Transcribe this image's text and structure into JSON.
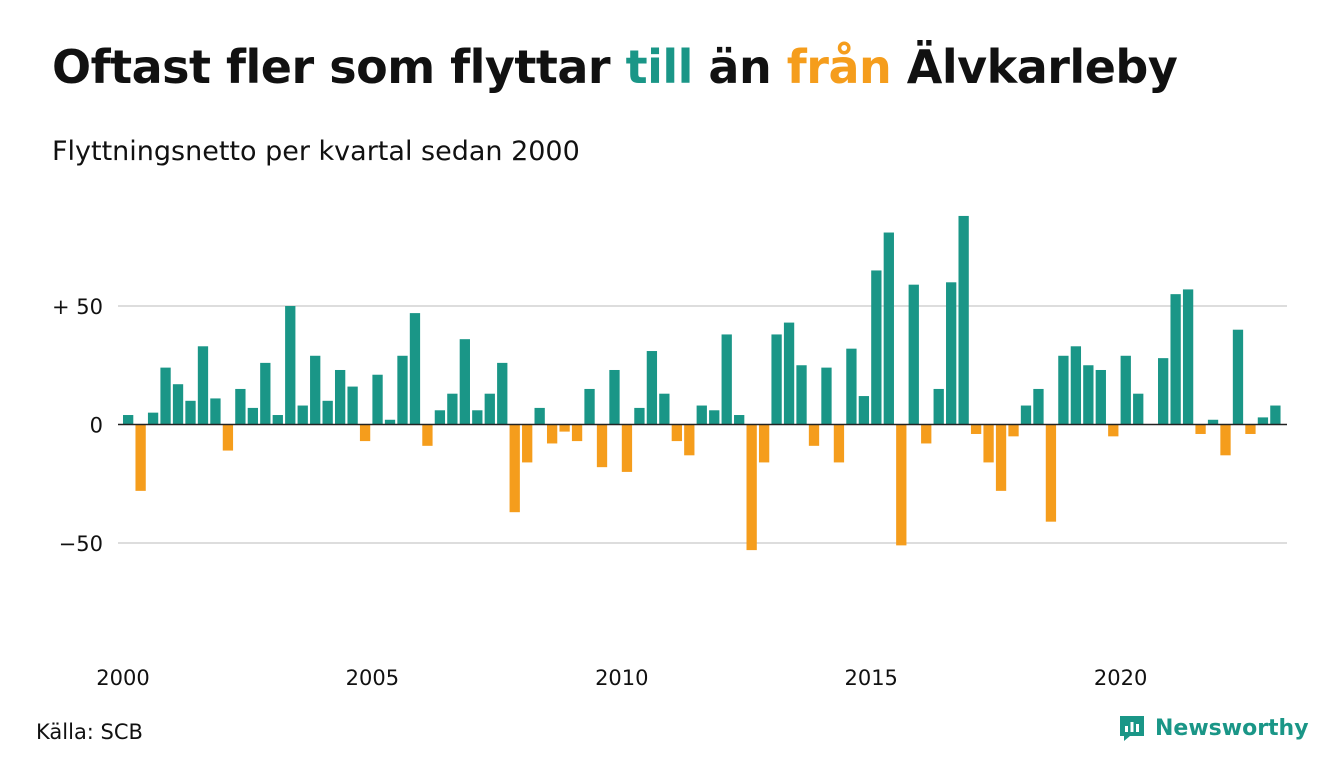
{
  "title": {
    "part1": "Oftast fler som flyttar ",
    "till": "till",
    "part2": " än ",
    "fran": "från",
    "part3": " Älvkarleby"
  },
  "subtitle": "Flyttningsnetto per kvartal sedan 2000",
  "source": "Källa: SCB",
  "brand": "Newsworthy",
  "colors": {
    "positive": "#1a9687",
    "negative": "#f59d1c",
    "grid": "#dddddd",
    "zero": "#222222"
  },
  "chart_data": {
    "type": "bar",
    "ylim": [
      -88,
      90
    ],
    "yticks": [
      {
        "value": 50,
        "label": "+ 50"
      },
      {
        "value": 0,
        "label": "0"
      },
      {
        "value": -50,
        "label": "−50"
      }
    ],
    "xticks": [
      {
        "year": 2000,
        "label": "2000"
      },
      {
        "year": 2005,
        "label": "2005"
      },
      {
        "year": 2010,
        "label": "2010"
      },
      {
        "year": 2015,
        "label": "2015"
      },
      {
        "year": 2020,
        "label": "2020"
      }
    ],
    "grid": true,
    "start_year": 2000,
    "start_quarter": 1,
    "values": [
      4,
      -28,
      5,
      24,
      17,
      10,
      33,
      11,
      -11,
      15,
      7,
      26,
      4,
      50,
      8,
      29,
      10,
      23,
      16,
      -7,
      21,
      2,
      29,
      47,
      -9,
      6,
      13,
      36,
      6,
      13,
      26,
      -37,
      -16,
      7,
      -8,
      -3,
      -7,
      15,
      -18,
      23,
      -20,
      7,
      31,
      13,
      -7,
      -13,
      8,
      6,
      38,
      4,
      -53,
      -16,
      38,
      43,
      25,
      -9,
      24,
      -16,
      32,
      12,
      65,
      81,
      -51,
      59,
      -8,
      15,
      60,
      88,
      -4,
      -16,
      -28,
      -5,
      8,
      15,
      -41,
      29,
      33,
      25,
      23,
      -5,
      29,
      13,
      0,
      28,
      55,
      57,
      -4,
      2,
      -13,
      40,
      -4,
      3,
      8
    ]
  }
}
